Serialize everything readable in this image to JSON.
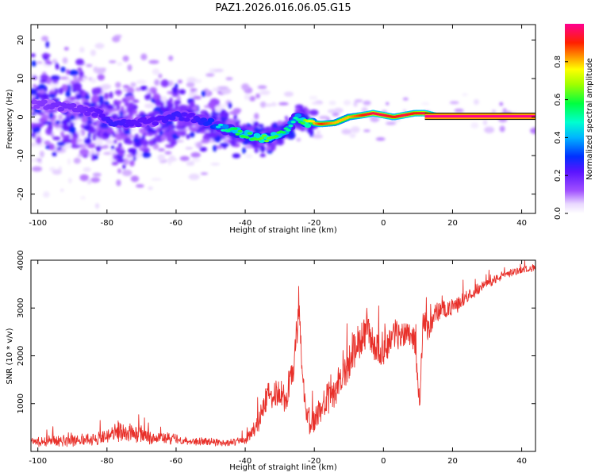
{
  "title": "PAZ1.2026.016.06.05.G15",
  "colors": {
    "snr_line": "#e8302a",
    "frame": "#000000",
    "track_peak": "#ff2050",
    "background_scatter": "#c9a8f5"
  },
  "chart_data": [
    {
      "type": "heatmap",
      "title": "PAZ1.2026.016.06.05.G15",
      "xlabel": "Height of straight line (km)",
      "ylabel": "Frequency (Hz)",
      "xlim": [
        -102,
        44
      ],
      "ylim": [
        -25,
        24
      ],
      "x_ticks": [
        -100,
        -80,
        -60,
        -40,
        -20,
        0,
        20,
        40
      ],
      "y_ticks": [
        -20,
        -10,
        0,
        10,
        20
      ],
      "colorbar": {
        "label": "Normalized spectral amplitude",
        "range": [
          0.0,
          1.0
        ],
        "ticks": [
          "0.0",
          "0.2",
          "0.4",
          "0.6",
          "0.8"
        ],
        "colormap": "hsv-like: white/violet (low) - blue - cyan - green - yellow - orange - red - magenta (high)"
      },
      "ridge": {
        "x": [
          -102,
          -95,
          -88,
          -82,
          -78,
          -72,
          -66,
          -60,
          -56,
          -50,
          -46,
          -42,
          -38,
          -34,
          -30,
          -27,
          -25,
          -22,
          -18,
          -14,
          -10,
          -6,
          -3,
          0,
          3,
          6,
          9,
          12,
          15,
          20,
          25,
          30,
          35,
          44
        ],
        "freq": [
          3.5,
          3.0,
          2.0,
          1.0,
          -2.0,
          -1.5,
          -1.0,
          0.5,
          0.0,
          -1.5,
          -3.0,
          -4.0,
          -5.0,
          -5.5,
          -4.5,
          -2.5,
          0.0,
          -1.5,
          -1.8,
          -1.5,
          0.0,
          0.5,
          1.0,
          0.5,
          0.0,
          0.5,
          1.0,
          1.0,
          0.3,
          0.2,
          0.2,
          0.2,
          0.2,
          0.2
        ],
        "amplitude": [
          0.2,
          0.25,
          0.25,
          0.3,
          0.35,
          0.3,
          0.3,
          0.35,
          0.3,
          0.4,
          0.5,
          0.6,
          0.6,
          0.65,
          0.6,
          0.5,
          0.5,
          0.7,
          0.9,
          0.8,
          0.8,
          0.9,
          0.95,
          0.95,
          0.9,
          0.95,
          0.9,
          0.95,
          1.0,
          1.0,
          1.0,
          1.0,
          1.0,
          1.0
        ]
      }
    },
    {
      "type": "line",
      "xlabel": "Height of straight line (km)",
      "ylabel": "SNR (10 * v/v)",
      "xlim": [
        -102,
        44
      ],
      "ylim": [
        0,
        4000
      ],
      "x_ticks": [
        -100,
        -80,
        -60,
        -40,
        -20,
        0,
        20,
        40
      ],
      "y_ticks": [
        1000,
        2000,
        3000,
        4000
      ],
      "series": [
        {
          "name": "SNR",
          "x": [
            -102,
            -96,
            -90,
            -85,
            -80,
            -76,
            -73,
            -70,
            -66,
            -62,
            -56,
            -50,
            -45,
            -40,
            -37,
            -34,
            -31,
            -28,
            -26,
            -24.5,
            -23,
            -21,
            -19,
            -17,
            -15,
            -13,
            -11,
            -9,
            -7,
            -5,
            -3,
            -1,
            1,
            3,
            5,
            7,
            9,
            10.5,
            11.5,
            13,
            15,
            17,
            20,
            25,
            30,
            35,
            40,
            44
          ],
          "values": [
            200,
            220,
            240,
            260,
            300,
            450,
            380,
            340,
            300,
            260,
            220,
            200,
            180,
            230,
            500,
            1050,
            1300,
            1100,
            1800,
            3000,
            1100,
            500,
            800,
            1000,
            1200,
            1400,
            1650,
            2000,
            2300,
            2500,
            2300,
            2100,
            2200,
            2500,
            2400,
            2550,
            2350,
            1000,
            2800,
            2500,
            2900,
            2950,
            3000,
            3300,
            3500,
            3700,
            3800,
            3850
          ],
          "noise_amplitude": [
            120,
            130,
            140,
            150,
            180,
            250,
            230,
            200,
            160,
            140,
            110,
            90,
            80,
            100,
            220,
            350,
            400,
            380,
            450,
            500,
            400,
            300,
            350,
            380,
            400,
            420,
            450,
            500,
            450,
            420,
            420,
            400,
            380,
            380,
            350,
            350,
            330,
            250,
            300,
            280,
            250,
            230,
            200,
            150,
            120,
            100,
            80,
            80
          ]
        }
      ]
    }
  ]
}
